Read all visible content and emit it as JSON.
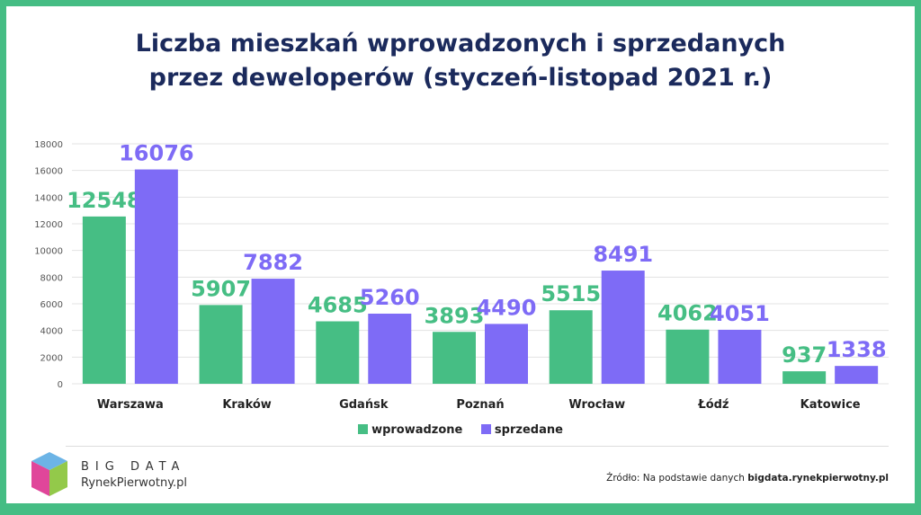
{
  "colors": {
    "wprowadzone": "#46BE84",
    "sprzedane": "#7E6BF6",
    "title": "#1B2A5C"
  },
  "chart_data": {
    "type": "bar",
    "title_line1": "Liczba mieszkań wprowadzonych i sprzedanych",
    "title_line2": "przez deweloperów (styczeń-listopad 2021 r.)",
    "categories": [
      "Warszawa",
      "Kraków",
      "Gdańsk",
      "Poznań",
      "Wrocław",
      "Łódź",
      "Katowice"
    ],
    "series": [
      {
        "name": "wprowadzone",
        "values": [
          12548,
          5907,
          4685,
          3893,
          5515,
          4062,
          937
        ]
      },
      {
        "name": "sprzedane",
        "values": [
          16076,
          7882,
          5260,
          4490,
          8491,
          4051,
          1338
        ]
      }
    ],
    "ylim": [
      0,
      18000
    ],
    "yticks": [
      "0",
      "2000",
      "4000",
      "6000",
      "8000",
      "10000",
      "12000",
      "14000",
      "16000",
      "18000"
    ],
    "grid": true,
    "legend": "bottom"
  },
  "footer": {
    "logo_line1": "BIG DATA",
    "logo_line2": "RynekPierwotny.pl",
    "source_prefix": "Źródło: Na podstawie danych ",
    "source_bold": "bigdata.rynekpierwotny.pl"
  }
}
